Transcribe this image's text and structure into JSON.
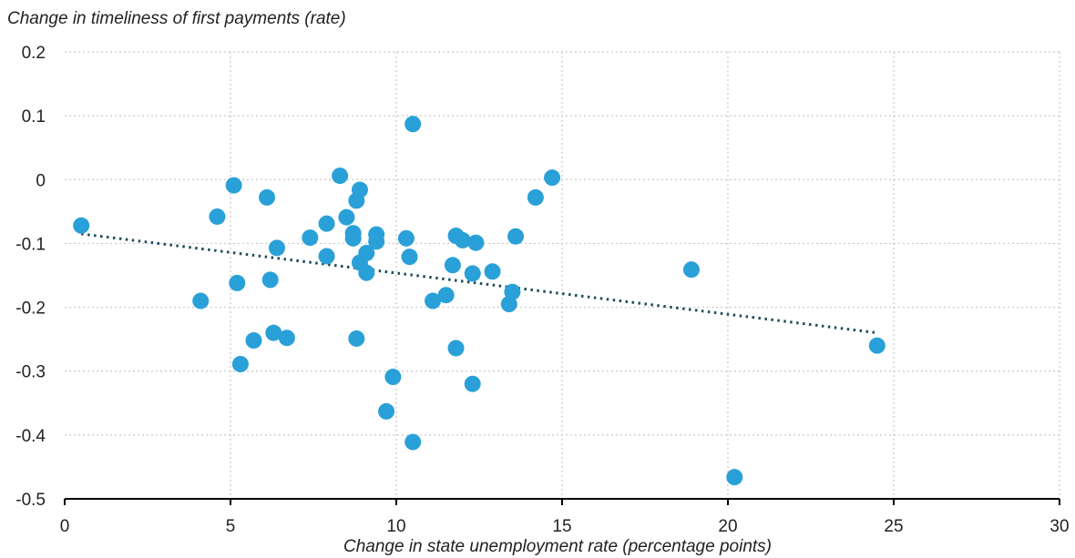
{
  "chart_data": {
    "type": "scatter",
    "title": "",
    "ylabel": "Change in timeliness of first payments (rate)",
    "xlabel": "Change in state unemployment rate (percentage points)",
    "xlim": [
      0,
      30
    ],
    "ylim": [
      -0.5,
      0.2
    ],
    "x_ticks": [
      0,
      5,
      10,
      15,
      20,
      25,
      30
    ],
    "y_ticks": [
      0.2,
      0.1,
      0,
      -0.1,
      -0.2,
      -0.3,
      -0.4,
      -0.5
    ],
    "x_tick_labels": [
      "0",
      "5",
      "10",
      "15",
      "20",
      "25",
      "30"
    ],
    "y_tick_labels": [
      "0.2",
      "0.1",
      "0",
      "-0.1",
      "-0.2",
      "-0.3",
      "-0.4",
      "-0.5"
    ],
    "grid": "dotted",
    "point_color": "#2aa0d8",
    "trendline": {
      "style": "dotted",
      "color": "#1e4d5c",
      "x": [
        0.5,
        24.5
      ],
      "y": [
        -0.085,
        -0.24
      ]
    },
    "points": [
      [
        0.5,
        -0.072
      ],
      [
        4.1,
        -0.19
      ],
      [
        4.6,
        -0.058
      ],
      [
        5.1,
        -0.009
      ],
      [
        5.2,
        -0.162
      ],
      [
        5.3,
        -0.289
      ],
      [
        5.7,
        -0.252
      ],
      [
        6.1,
        -0.028
      ],
      [
        6.2,
        -0.157
      ],
      [
        6.3,
        -0.24
      ],
      [
        6.4,
        -0.107
      ],
      [
        6.7,
        -0.248
      ],
      [
        7.4,
        -0.091
      ],
      [
        7.9,
        -0.069
      ],
      [
        7.9,
        -0.12
      ],
      [
        8.3,
        0.006
      ],
      [
        8.5,
        -0.059
      ],
      [
        8.7,
        -0.084
      ],
      [
        8.7,
        -0.092
      ],
      [
        8.8,
        -0.033
      ],
      [
        8.8,
        -0.249
      ],
      [
        8.9,
        -0.016
      ],
      [
        8.9,
        -0.13
      ],
      [
        9.1,
        -0.115
      ],
      [
        9.1,
        -0.146
      ],
      [
        9.4,
        -0.086
      ],
      [
        9.4,
        -0.097
      ],
      [
        9.7,
        -0.363
      ],
      [
        9.9,
        -0.309
      ],
      [
        10.3,
        -0.092
      ],
      [
        10.4,
        -0.121
      ],
      [
        10.5,
        0.087
      ],
      [
        10.5,
        -0.411
      ],
      [
        11.1,
        -0.19
      ],
      [
        11.5,
        -0.181
      ],
      [
        11.7,
        -0.134
      ],
      [
        11.8,
        -0.088
      ],
      [
        11.8,
        -0.264
      ],
      [
        12.0,
        -0.095
      ],
      [
        12.3,
        -0.147
      ],
      [
        12.3,
        -0.32
      ],
      [
        12.4,
        -0.099
      ],
      [
        12.9,
        -0.144
      ],
      [
        13.4,
        -0.195
      ],
      [
        13.5,
        -0.176
      ],
      [
        13.6,
        -0.089
      ],
      [
        14.2,
        -0.028
      ],
      [
        14.7,
        0.003
      ],
      [
        18.9,
        -0.141
      ],
      [
        20.2,
        -0.466
      ],
      [
        24.5,
        -0.26
      ]
    ]
  }
}
